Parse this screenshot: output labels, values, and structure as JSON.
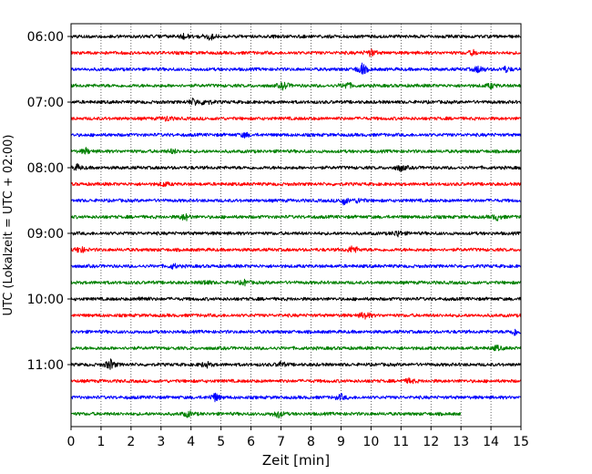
{
  "chart_data": {
    "type": "line",
    "title": "",
    "xlabel": "Zeit  [min]",
    "ylabel": "UTC (Lokalzeit = UTC + 02:00)",
    "xlim": [
      0,
      15
    ],
    "x_ticks": [
      0,
      1,
      2,
      3,
      4,
      5,
      6,
      7,
      8,
      9,
      10,
      11,
      12,
      13,
      14,
      15
    ],
    "x_tick_labels": [
      "0",
      "1",
      "2",
      "3",
      "4",
      "5",
      "6",
      "7",
      "8",
      "9",
      "10",
      "11",
      "12",
      "13",
      "14",
      "15"
    ],
    "y_tick_labels": [
      "06:00",
      "07:00",
      "08:00",
      "09:00",
      "10:00",
      "11:00"
    ],
    "grid": {
      "vertical": true,
      "style": "dotted"
    },
    "color_cycle": [
      "#000000",
      "#ff0000",
      "#0000ff",
      "#008000"
    ],
    "traces": [
      {
        "start": "06:00",
        "color": "#000000",
        "end_min": 15,
        "events": [
          [
            3.8,
            1.4
          ],
          [
            4.6,
            2.2
          ]
        ]
      },
      {
        "start": "06:15",
        "color": "#ff0000",
        "end_min": 15,
        "events": [
          [
            10.0,
            1.8
          ],
          [
            13.4,
            1.2
          ]
        ]
      },
      {
        "start": "06:30",
        "color": "#0000ff",
        "end_min": 15,
        "events": [
          [
            9.7,
            3.0
          ],
          [
            13.6,
            2.0
          ],
          [
            14.5,
            1.4
          ]
        ]
      },
      {
        "start": "06:45",
        "color": "#008000",
        "end_min": 15,
        "events": [
          [
            7.1,
            2.0
          ],
          [
            9.2,
            1.8
          ],
          [
            14.0,
            1.2
          ]
        ]
      },
      {
        "start": "07:00",
        "color": "#000000",
        "end_min": 15,
        "events": [
          [
            4.1,
            1.8
          ],
          [
            4.5,
            1.6
          ]
        ]
      },
      {
        "start": "07:15",
        "color": "#ff0000",
        "end_min": 15,
        "events": [
          [
            3.2,
            1.2
          ]
        ]
      },
      {
        "start": "07:30",
        "color": "#0000ff",
        "end_min": 15,
        "events": [
          [
            5.8,
            1.2
          ]
        ]
      },
      {
        "start": "07:45",
        "color": "#008000",
        "end_min": 15,
        "events": [
          [
            0.5,
            1.3
          ],
          [
            3.4,
            1.1
          ]
        ]
      },
      {
        "start": "08:00",
        "color": "#000000",
        "end_min": 15,
        "events": [
          [
            0.2,
            1.4
          ],
          [
            11.0,
            1.6
          ]
        ]
      },
      {
        "start": "08:15",
        "color": "#ff0000",
        "end_min": 15,
        "events": [
          [
            3.1,
            1.1
          ]
        ]
      },
      {
        "start": "08:30",
        "color": "#0000ff",
        "end_min": 15,
        "events": [
          [
            9.1,
            1.9
          ],
          [
            9.6,
            1.2
          ]
        ]
      },
      {
        "start": "08:45",
        "color": "#008000",
        "end_min": 15,
        "events": [
          [
            3.8,
            1.8
          ],
          [
            14.2,
            1.5
          ]
        ]
      },
      {
        "start": "09:00",
        "color": "#000000",
        "end_min": 15,
        "events": [
          [
            10.9,
            1.6
          ]
        ]
      },
      {
        "start": "09:15",
        "color": "#ff0000",
        "end_min": 15,
        "events": [
          [
            0.3,
            1.8
          ],
          [
            9.4,
            2.2
          ]
        ]
      },
      {
        "start": "09:30",
        "color": "#0000ff",
        "end_min": 15,
        "events": [
          [
            3.4,
            1.1
          ]
        ]
      },
      {
        "start": "09:45",
        "color": "#008000",
        "end_min": 15,
        "events": [
          [
            4.5,
            1.2
          ],
          [
            5.8,
            1.2
          ]
        ]
      },
      {
        "start": "10:00",
        "color": "#000000",
        "end_min": 15,
        "events": [
          [
            2.4,
            1.1
          ]
        ]
      },
      {
        "start": "10:15",
        "color": "#ff0000",
        "end_min": 15,
        "events": [
          [
            9.8,
            2.0
          ]
        ]
      },
      {
        "start": "10:30",
        "color": "#0000ff",
        "end_min": 15,
        "events": [
          [
            14.8,
            1.6
          ]
        ]
      },
      {
        "start": "10:45",
        "color": "#008000",
        "end_min": 15,
        "events": [
          [
            14.2,
            1.2
          ]
        ]
      },
      {
        "start": "11:00",
        "color": "#000000",
        "end_min": 15,
        "events": [
          [
            1.3,
            2.8
          ],
          [
            4.5,
            1.5
          ],
          [
            7.0,
            1.3
          ]
        ]
      },
      {
        "start": "11:15",
        "color": "#ff0000",
        "end_min": 15,
        "events": [
          [
            11.3,
            1.3
          ]
        ]
      },
      {
        "start": "11:30",
        "color": "#0000ff",
        "end_min": 15,
        "events": [
          [
            4.8,
            2.2
          ],
          [
            9.0,
            1.4
          ]
        ]
      },
      {
        "start": "11:45",
        "color": "#008000",
        "end_min": 13,
        "events": [
          [
            3.9,
            1.5
          ],
          [
            6.9,
            1.8
          ]
        ]
      }
    ]
  }
}
